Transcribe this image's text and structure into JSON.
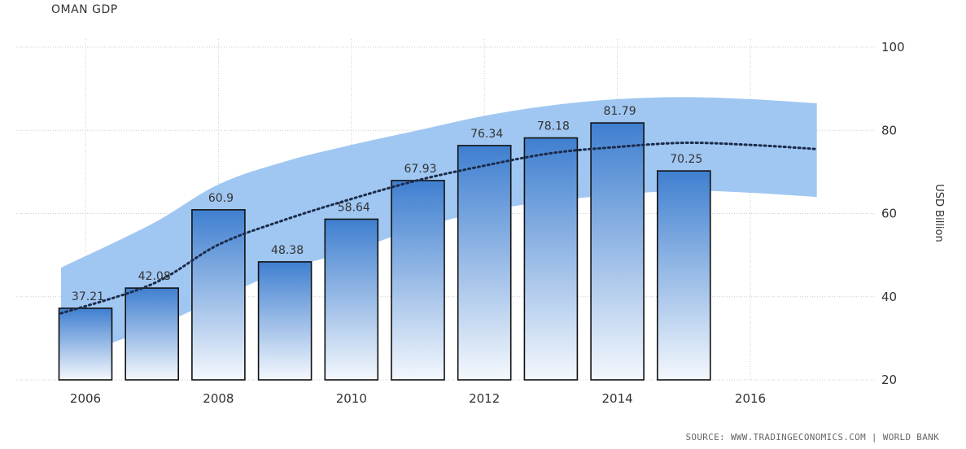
{
  "title": "OMAN GDP",
  "source_text": "SOURCE: WWW.TRADINGECONOMICS.COM | WORLD BANK",
  "colors": {
    "bar_top": "#3f7fd0",
    "bar_bottom": "#f4f8fd",
    "bar_stroke": "#111111",
    "band": "#8fbdf0",
    "trend": "#1c2b4a",
    "grid": "#cccccc",
    "label": "#333333"
  },
  "chart_data": {
    "type": "bar",
    "title": "OMAN GDP",
    "ylabel": "USD Billion",
    "xlabel": "",
    "ylim": [
      20,
      100
    ],
    "y_ticks": [
      20,
      40,
      60,
      80,
      100
    ],
    "x_ticks": [
      2006,
      2008,
      2010,
      2012,
      2014,
      2016
    ],
    "grid": true,
    "categories": [
      2006,
      2007,
      2008,
      2009,
      2010,
      2011,
      2012,
      2013,
      2014,
      2015
    ],
    "values": [
      37.21,
      42.08,
      60.9,
      48.38,
      58.64,
      67.93,
      76.34,
      78.18,
      81.79,
      70.25
    ],
    "data_labels": [
      "37.21",
      "42.08",
      "60.9",
      "48.38",
      "58.64",
      "67.93",
      "76.34",
      "78.18",
      "81.79",
      "70.25"
    ],
    "trend": {
      "x": [
        2006,
        2007,
        2008,
        2009,
        2010,
        2011,
        2012,
        2013,
        2014,
        2015,
        2016,
        2017
      ],
      "center": [
        36,
        43,
        52.5,
        58.5,
        63.5,
        68,
        71.5,
        74.5,
        76,
        77,
        76.5,
        75.5
      ],
      "upper": [
        47,
        57.5,
        67,
        72.5,
        76.5,
        80,
        83.5,
        86,
        87.5,
        88,
        87.5,
        86.5
      ],
      "lower": [
        24.5,
        32.5,
        39.5,
        46.5,
        51,
        56.5,
        60.5,
        63,
        64.5,
        65.5,
        65,
        64
      ]
    }
  }
}
